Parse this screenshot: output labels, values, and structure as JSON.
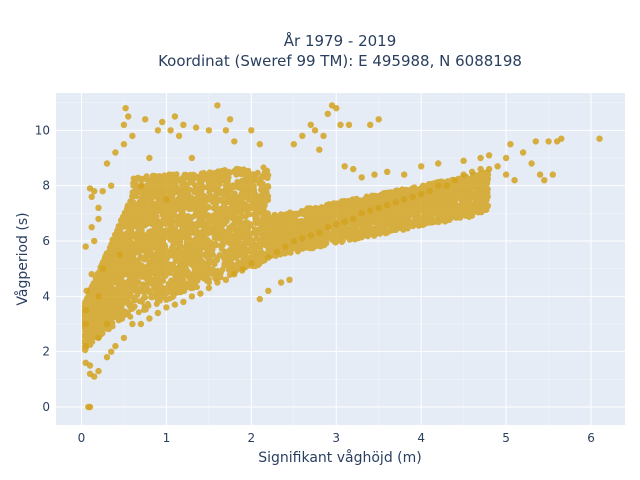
{
  "chart_data": {
    "type": "scatter",
    "title_line1": "År 1979 - 2019",
    "title_line2": "Koordinat (Sweref 99 TM): E 495988, N 6088198",
    "xlabel": "Signifikant våghöjd (m)",
    "ylabel": "Vågperiod (s)",
    "xlim": [
      -0.3,
      6.4
    ],
    "ylim": [
      -0.65,
      11.35
    ],
    "x_ticks": [
      0,
      1,
      2,
      3,
      4,
      5,
      6
    ],
    "y_ticks": [
      0,
      2,
      4,
      6,
      8,
      10
    ],
    "grid": true,
    "marker_color": "#d4a21f",
    "series": [
      {
        "points": [
          [
            0.05,
            3.5
          ],
          [
            0.05,
            3.0
          ],
          [
            0.05,
            2.2
          ],
          [
            0.05,
            1.6
          ],
          [
            0.05,
            5.8
          ],
          [
            0.06,
            4.2
          ],
          [
            0.08,
            0.0
          ],
          [
            0.1,
            0.0
          ],
          [
            0.1,
            1.2
          ],
          [
            0.1,
            1.5
          ],
          [
            0.12,
            4.8
          ],
          [
            0.12,
            6.5
          ],
          [
            0.1,
            7.9
          ],
          [
            0.12,
            7.6
          ],
          [
            0.15,
            1.1
          ],
          [
            0.15,
            6.0
          ],
          [
            0.15,
            7.8
          ],
          [
            0.2,
            1.3
          ],
          [
            0.2,
            2.5
          ],
          [
            0.2,
            4.0
          ],
          [
            0.2,
            6.8
          ],
          [
            0.2,
            7.2
          ],
          [
            0.25,
            5.0
          ],
          [
            0.25,
            7.8
          ],
          [
            0.3,
            1.8
          ],
          [
            0.3,
            3.0
          ],
          [
            0.3,
            8.8
          ],
          [
            0.35,
            2.0
          ],
          [
            0.35,
            8.0
          ],
          [
            0.4,
            2.2
          ],
          [
            0.4,
            9.2
          ],
          [
            0.45,
            5.5
          ],
          [
            0.5,
            2.5
          ],
          [
            0.5,
            9.5
          ],
          [
            0.5,
            10.2
          ],
          [
            0.52,
            10.8
          ],
          [
            0.55,
            10.5
          ],
          [
            0.6,
            3.0
          ],
          [
            0.6,
            9.8
          ],
          [
            0.7,
            3.0
          ],
          [
            0.7,
            8.0
          ],
          [
            0.75,
            10.4
          ],
          [
            0.8,
            3.2
          ],
          [
            0.8,
            9.0
          ],
          [
            0.9,
            3.4
          ],
          [
            0.9,
            10.0
          ],
          [
            0.95,
            10.3
          ],
          [
            1.0,
            3.6
          ],
          [
            1.0,
            7.5
          ],
          [
            1.05,
            10.0
          ],
          [
            1.1,
            3.7
          ],
          [
            1.1,
            10.5
          ],
          [
            1.15,
            9.8
          ],
          [
            1.2,
            3.8
          ],
          [
            1.2,
            10.2
          ],
          [
            1.3,
            4.0
          ],
          [
            1.3,
            9.0
          ],
          [
            1.35,
            10.1
          ],
          [
            1.4,
            4.1
          ],
          [
            1.5,
            4.3
          ],
          [
            1.5,
            10.0
          ],
          [
            1.6,
            4.5
          ],
          [
            1.6,
            10.9
          ],
          [
            1.7,
            4.6
          ],
          [
            1.7,
            10.0
          ],
          [
            1.75,
            10.4
          ],
          [
            1.8,
            4.8
          ],
          [
            1.8,
            9.6
          ],
          [
            1.9,
            5.0
          ],
          [
            2.0,
            5.2
          ],
          [
            2.0,
            10.0
          ],
          [
            2.1,
            3.9
          ],
          [
            2.1,
            9.5
          ],
          [
            2.2,
            4.2
          ],
          [
            2.2,
            5.4
          ],
          [
            2.3,
            5.6
          ],
          [
            2.35,
            4.5
          ],
          [
            2.4,
            5.8
          ],
          [
            2.45,
            4.6
          ],
          [
            2.5,
            6.0
          ],
          [
            2.5,
            9.5
          ],
          [
            2.6,
            6.1
          ],
          [
            2.6,
            9.8
          ],
          [
            2.7,
            6.2
          ],
          [
            2.7,
            10.2
          ],
          [
            2.75,
            10.0
          ],
          [
            2.8,
            6.3
          ],
          [
            2.8,
            9.3
          ],
          [
            2.85,
            9.8
          ],
          [
            2.9,
            6.5
          ],
          [
            2.9,
            10.6
          ],
          [
            2.95,
            10.9
          ],
          [
            3.0,
            6.6
          ],
          [
            3.0,
            10.8
          ],
          [
            3.05,
            10.2
          ],
          [
            3.1,
            6.7
          ],
          [
            3.1,
            8.7
          ],
          [
            3.15,
            10.2
          ],
          [
            3.2,
            6.8
          ],
          [
            3.2,
            8.6
          ],
          [
            3.3,
            7.0
          ],
          [
            3.3,
            8.3
          ],
          [
            3.4,
            7.1
          ],
          [
            3.4,
            10.2
          ],
          [
            3.45,
            8.4
          ],
          [
            3.5,
            7.2
          ],
          [
            3.5,
            10.4
          ],
          [
            3.6,
            7.3
          ],
          [
            3.6,
            8.5
          ],
          [
            3.7,
            7.4
          ],
          [
            3.8,
            7.5
          ],
          [
            3.8,
            8.4
          ],
          [
            3.9,
            7.6
          ],
          [
            4.0,
            7.7
          ],
          [
            4.0,
            8.7
          ],
          [
            4.1,
            7.8
          ],
          [
            4.2,
            8.0
          ],
          [
            4.2,
            8.8
          ],
          [
            4.3,
            8.0
          ],
          [
            4.4,
            8.2
          ],
          [
            4.5,
            8.4
          ],
          [
            4.5,
            8.9
          ],
          [
            4.6,
            8.5
          ],
          [
            4.7,
            8.6
          ],
          [
            4.7,
            9.0
          ],
          [
            4.8,
            8.6
          ],
          [
            4.8,
            9.1
          ],
          [
            4.9,
            8.7
          ],
          [
            5.0,
            9.0
          ],
          [
            5.0,
            8.4
          ],
          [
            5.05,
            9.5
          ],
          [
            5.1,
            8.2
          ],
          [
            5.2,
            9.2
          ],
          [
            5.3,
            8.8
          ],
          [
            5.35,
            9.6
          ],
          [
            5.4,
            8.4
          ],
          [
            5.45,
            8.2
          ],
          [
            5.5,
            9.6
          ],
          [
            5.55,
            8.4
          ],
          [
            5.6,
            9.6
          ],
          [
            5.65,
            9.7
          ],
          [
            6.1,
            9.7
          ]
        ]
      }
    ]
  }
}
